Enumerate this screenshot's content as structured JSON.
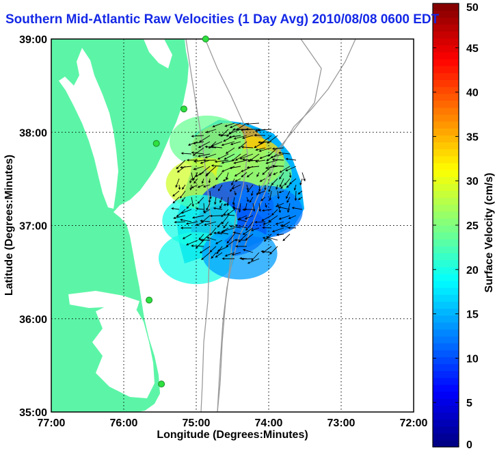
{
  "chart_data": {
    "type": "heatmap",
    "title": "Southern Mid-Atlantic Raw Velocities (1 Day Avg) 2010/08/08 0600 EDT",
    "xlabel": "Longitude (Degrees:Minutes)",
    "ylabel": "Latitude (Degrees:Minutes)",
    "x_ticks": [
      "77:00",
      "76:00",
      "75:00",
      "74:00",
      "73:00",
      "72:00"
    ],
    "y_ticks": [
      "35:00",
      "36:00",
      "37:00",
      "38:00",
      "39:00"
    ],
    "xlim": [
      -77,
      -72
    ],
    "ylim": [
      35,
      39
    ],
    "grid": true,
    "colorbar": {
      "label": "Surface Velocity (cm/s)",
      "range": [
        0,
        50
      ],
      "ticks": [
        "0",
        "5",
        "10",
        "15",
        "20",
        "25",
        "30",
        "35",
        "40",
        "45",
        "50"
      ],
      "colormap": "jet"
    },
    "velocity_regions": [
      {
        "lon": -74.55,
        "lat": 37.82,
        "speed": 36
      },
      {
        "lon": -74.3,
        "lat": 37.68,
        "speed": 33
      },
      {
        "lon": -74.85,
        "lat": 37.9,
        "speed": 24
      },
      {
        "lon": -74.9,
        "lat": 37.45,
        "speed": 29
      },
      {
        "lon": -74.2,
        "lat": 37.55,
        "speed": 25
      },
      {
        "lon": -74.45,
        "lat": 37.2,
        "speed": 9
      },
      {
        "lon": -74.55,
        "lat": 36.95,
        "speed": 5
      },
      {
        "lon": -74.05,
        "lat": 37.15,
        "speed": 12
      },
      {
        "lon": -74.95,
        "lat": 37.05,
        "speed": 20
      },
      {
        "lon": -75.0,
        "lat": 36.65,
        "speed": 20
      },
      {
        "lon": -74.4,
        "lat": 36.7,
        "speed": 14
      }
    ],
    "radar_sites": [
      {
        "lon": -74.87,
        "lat": 39.0
      },
      {
        "lon": -75.17,
        "lat": 38.25
      },
      {
        "lon": -75.55,
        "lat": 37.88
      },
      {
        "lon": -75.65,
        "lat": 36.2
      },
      {
        "lon": -75.48,
        "lat": 35.3
      }
    ]
  },
  "colors": {
    "land": "#5cf5a7",
    "water": "#ffffff",
    "bathymetry": "#9a9a9a",
    "site_marker": "#2ee040",
    "title": "#1428e6"
  }
}
